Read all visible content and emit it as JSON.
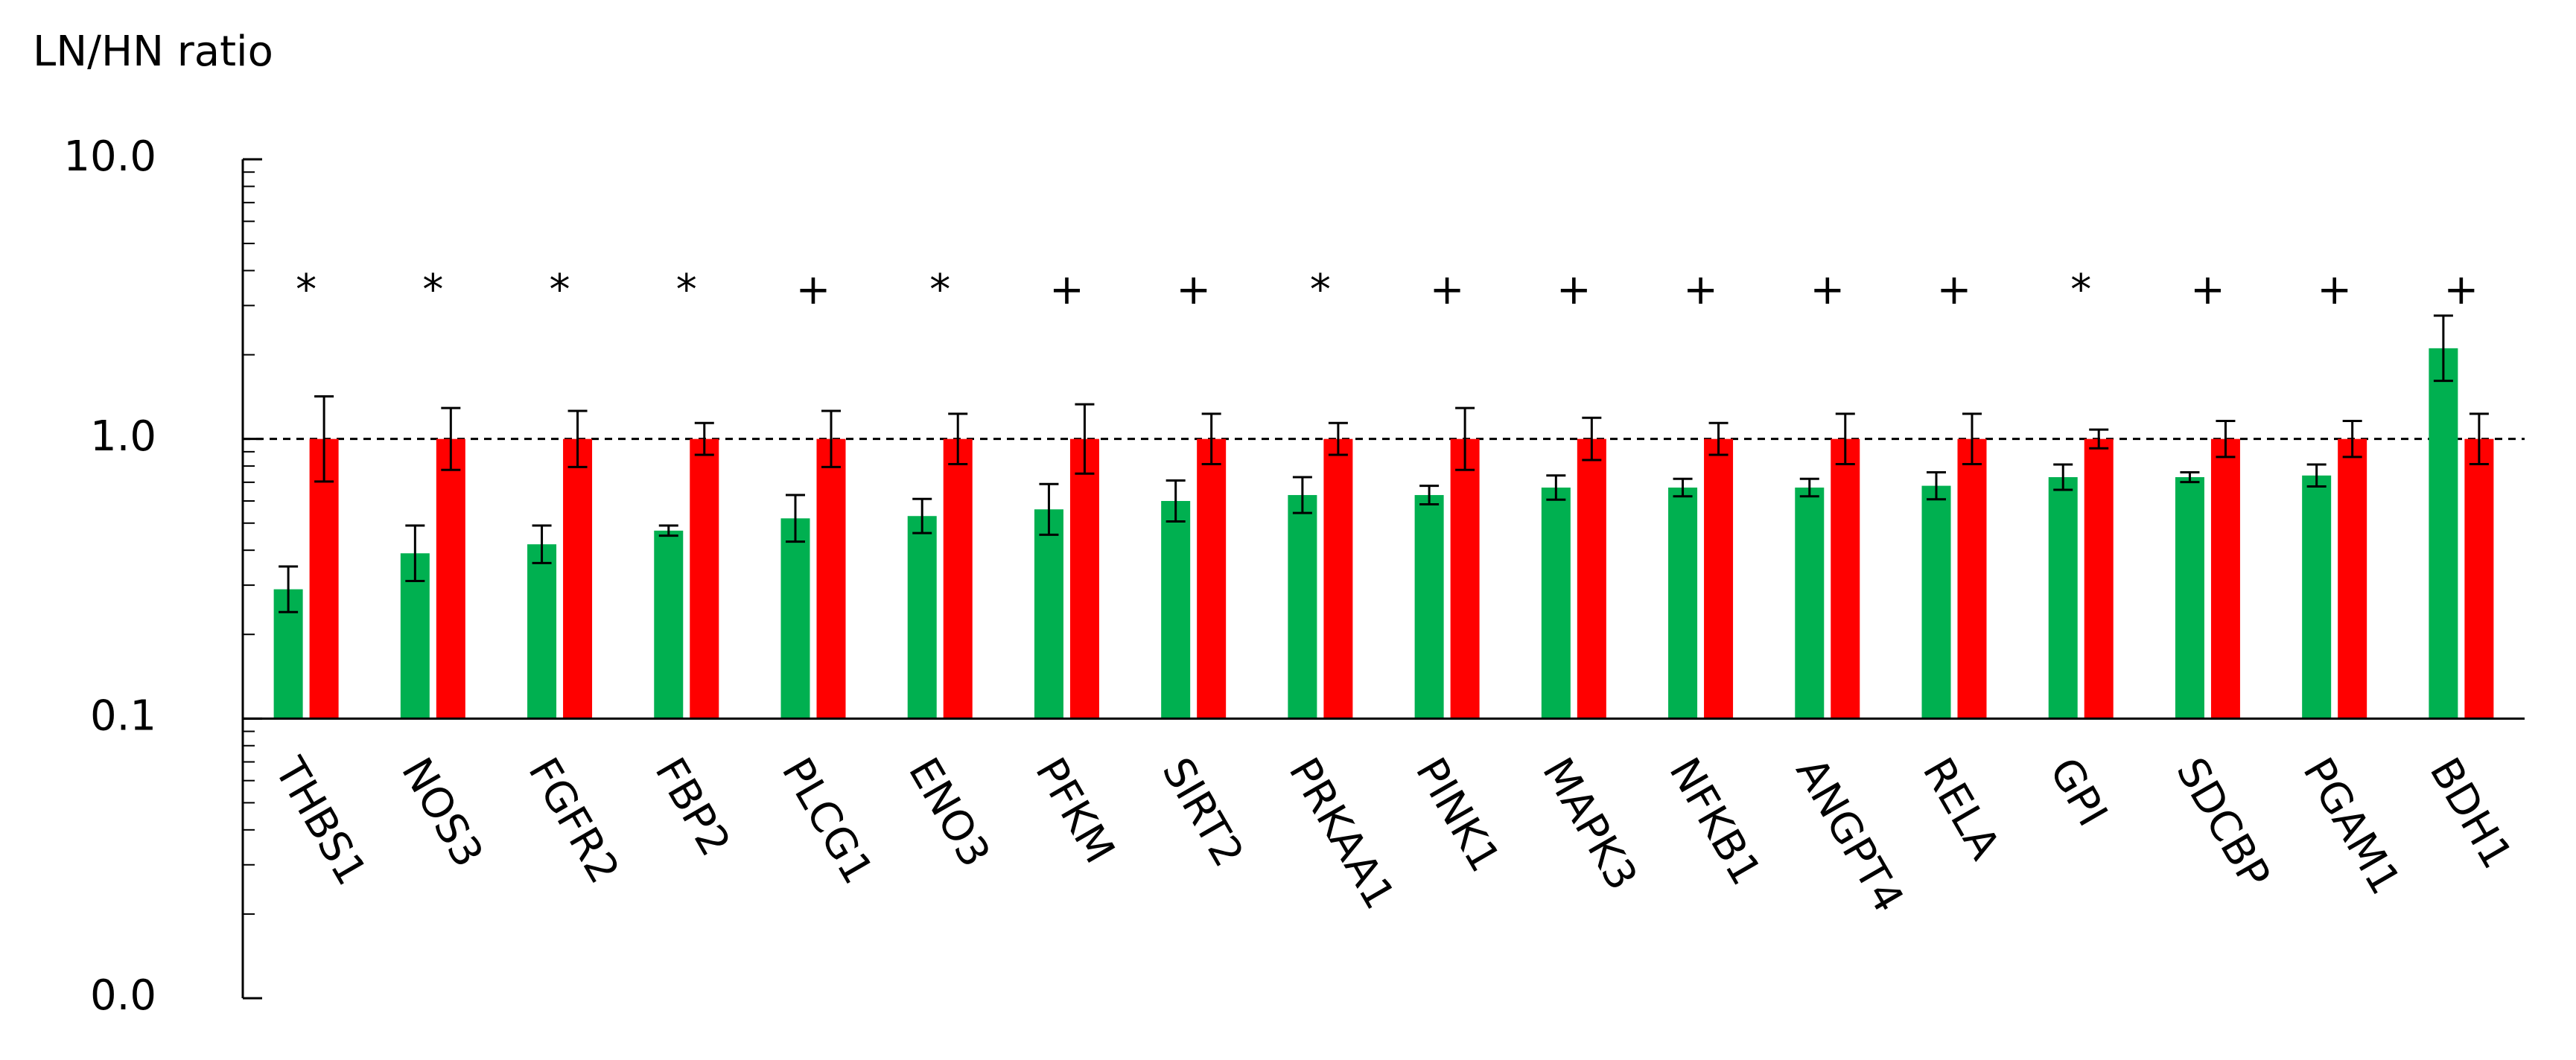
{
  "chart_data": {
    "type": "bar",
    "y_label": "LN/HN ratio",
    "log_scale": true,
    "ylim": [
      0.01,
      10
    ],
    "yticks": [
      {
        "value": 10,
        "label": "10.0"
      },
      {
        "value": 1,
        "label": "1.0"
      },
      {
        "value": 0.1,
        "label": "0.1"
      },
      {
        "value": 0.01,
        "label": "0.0"
      }
    ],
    "x_axis_at": 0.1,
    "reference_line": 1,
    "categories": [
      "THBS1",
      "NOS3",
      "FGFR2",
      "FBP2",
      "PLCG1",
      "ENO3",
      "PFKM",
      "SIRT2",
      "PRKAA1",
      "PINK1",
      "MAPK3",
      "NFKB1",
      "ANGPT4",
      "RELA",
      "GPI",
      "SDCBP",
      "PGAM1",
      "BDH1"
    ],
    "markers": [
      "*",
      "*",
      "*",
      "*",
      "+",
      "*",
      "+",
      "+",
      "*",
      "+",
      "+",
      "+",
      "+",
      "+",
      "*",
      "+",
      "+",
      "+"
    ],
    "series": [
      {
        "color": "#00b050",
        "values": [
          0.29,
          0.39,
          0.42,
          0.47,
          0.52,
          0.53,
          0.56,
          0.6,
          0.63,
          0.63,
          0.67,
          0.67,
          0.67,
          0.68,
          0.73,
          0.73,
          0.74,
          2.11
        ],
        "errors": [
          0.06,
          0.1,
          0.07,
          0.02,
          0.11,
          0.08,
          0.13,
          0.11,
          0.1,
          0.05,
          0.07,
          0.05,
          0.05,
          0.08,
          0.08,
          0.03,
          0.07,
          0.65
        ]
      },
      {
        "color": "#ff0000",
        "values": [
          1,
          1,
          1,
          1,
          1,
          1,
          1,
          1,
          1,
          1,
          1,
          1,
          1,
          1,
          1,
          1,
          1,
          1
        ],
        "errors": [
          0.42,
          0.29,
          0.26,
          0.14,
          0.26,
          0.23,
          0.33,
          0.23,
          0.14,
          0.29,
          0.19,
          0.14,
          0.23,
          0.23,
          0.08,
          0.16,
          0.16,
          0.23
        ]
      }
    ]
  }
}
